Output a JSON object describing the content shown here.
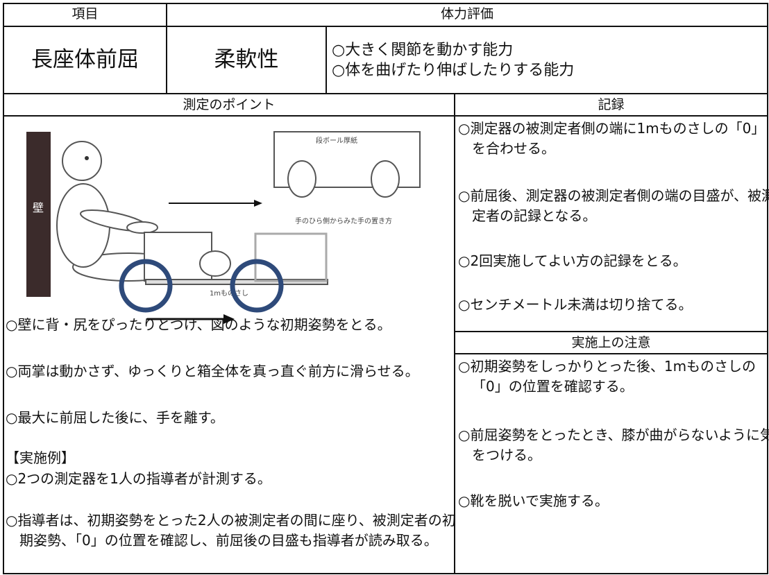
{
  "header": {
    "item_label": "項目",
    "category_label": "体力評価"
  },
  "test": {
    "name": "長座体前屈",
    "ability": "柔軟性",
    "descriptions": [
      "○大きく関節を動かす能力",
      "○体を曲げたり伸ばしたりする能力"
    ]
  },
  "points": {
    "title": "測定のポイント",
    "illustration_labels": {
      "wall": "壁",
      "board": "段ボール厚紙",
      "hands": "手のひら側からみた手の置き方",
      "ruler": "1mものさし"
    },
    "items": [
      "○壁に背・尻をぴったりとつけ、図のような初期姿勢をとる。",
      "○両掌は動かさず、ゆっくりと箱全体を真っ直ぐ前方に滑らせる。",
      "○最大に前屈した後に、手を離す。",
      "【実施例】",
      "○2つの測定器を1人の指導者が計測する。",
      "○指導者は、初期姿勢をとった2人の被測定者の間に座り、被測定者の初期姿勢、「0」の位置を確認し、前屈後の目盛も指導者が読み取る。"
    ]
  },
  "record": {
    "title": "記録",
    "items": [
      "○測定器の被測定者側の端に1mものさしの「0」を合わせる。",
      "○前屈後、測定器の被測定者側の端の目盛が、被測定者の記録となる。",
      "○2回実施してよい方の記録をとる。",
      "○センチメートル未満は切り捨てる。"
    ]
  },
  "notes": {
    "title": "実施上の注意",
    "items": [
      "○初期姿勢をしっかりとった後、1mものさしの「0」の位置を確認する。",
      "○前屈姿勢をとったとき、膝が曲がらないように気をつける。",
      "○靴を脱いで実施する。"
    ]
  }
}
